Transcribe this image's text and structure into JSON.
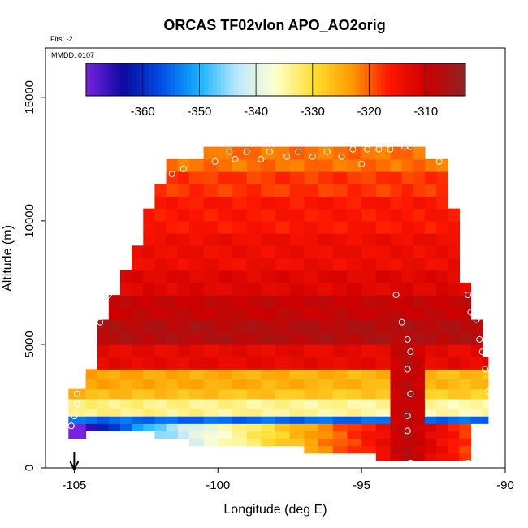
{
  "chart_data": {
    "type": "heatmap",
    "title": "ORCAS TF02vlon APO_AO2orig",
    "flight_label": "Flts: -2",
    "date_label": "MMDD: 0107",
    "xlabel": "Longitude (deg E)",
    "ylabel": "Altitude (m)",
    "xlim": [
      -106,
      -90
    ],
    "ylim": [
      0,
      17000
    ],
    "xticks": [
      -105,
      -100,
      -95,
      -90
    ],
    "yticks": [
      0,
      5000,
      10000,
      15000
    ],
    "colorbar": {
      "range": [
        -370,
        -303
      ],
      "ticks": [
        -360,
        -350,
        -340,
        -330,
        -320,
        -310
      ],
      "colors": [
        "#7a22e0",
        "#0a0aa0",
        "#0050e8",
        "#16b4ff",
        "#bfe8ff",
        "#ffffcc",
        "#ffe030",
        "#ff9a00",
        "#ff1500",
        "#cc0000",
        "#8c2424"
      ]
    },
    "arrow_longitude": -105,
    "curtain": {
      "lon_edges": [
        -105.2,
        -104.6,
        -104.2,
        -103.8,
        -103.4,
        -103,
        -102.6,
        -102.2,
        -101.8,
        -101.4,
        -101,
        -100.5,
        -100,
        -99.5,
        -99,
        -98.5,
        -98,
        -97.5,
        -97,
        -96.5,
        -96,
        -95.5,
        -95,
        -94.5,
        -94,
        -93.6,
        -93.2,
        -92.8,
        -92.4,
        -92,
        -91.6,
        -91.2,
        -90.8,
        -90.6
      ],
      "alt_edges": [
        0,
        300,
        600,
        900,
        1200,
        1500,
        1800,
        2100,
        2400,
        2800,
        3200,
        3600,
        4000,
        4500,
        5000,
        5500,
        6000,
        6500,
        7000,
        7500,
        8000,
        8500,
        9000,
        9500,
        10000,
        10500,
        11000,
        11500,
        12000,
        12500,
        13000,
        13300
      ],
      "top_altitude": [
        3300,
        4100,
        6200,
        7200,
        8100,
        9200,
        10600,
        11400,
        12300,
        12700,
        12700,
        12800,
        12800,
        12800,
        12800,
        12800,
        12800,
        12900,
        12900,
        12900,
        12900,
        12900,
        13000,
        13000,
        13000,
        13100,
        13000,
        12700,
        12300,
        10700,
        7500,
        6000,
        4600
      ],
      "bottom_altitude": [
        1200,
        1400,
        1500,
        1500,
        1500,
        1500,
        1400,
        1300,
        1300,
        1100,
        1000,
        900,
        900,
        900,
        900,
        900,
        900,
        800,
        700,
        600,
        600,
        600,
        500,
        400,
        300,
        200,
        200,
        200,
        200,
        200,
        200,
        1700,
        1900
      ],
      "profile_low_altitude": [
        -370,
        -366,
        -362,
        -358,
        -355,
        -352,
        -349,
        -346,
        -344,
        -342,
        -340,
        -338,
        -336,
        -334,
        -332,
        -330,
        -328,
        -326,
        -324,
        -322,
        -320,
        -318,
        -316,
        -314,
        -312,
        -311,
        -310,
        -312,
        -314,
        -316,
        -318,
        -320,
        -322
      ],
      "layer_ylo": [
        {
          "ylo": 1900,
          "value": -355
        },
        {
          "ylo": 2200,
          "value": -333
        },
        {
          "ylo": 2800,
          "value": -326
        },
        {
          "ylo": 3200,
          "value": -324
        },
        {
          "ylo": 4000,
          "value": -313
        },
        {
          "ylo": 5000,
          "value": -307
        },
        {
          "ylo": 6000,
          "value": -309
        },
        {
          "ylo": 7000,
          "value": -312
        },
        {
          "ylo": 8000,
          "value": -314
        },
        {
          "ylo": 9500,
          "value": -316
        },
        {
          "ylo": 11000,
          "value": -318
        },
        {
          "ylo": 12000,
          "value": -321
        }
      ],
      "core_longitude": -93.4,
      "core_value": -308
    },
    "samples": [
      {
        "lon": -105.1,
        "alt": 1700
      },
      {
        "lon": -105,
        "alt": 2100
      },
      {
        "lon": -104.9,
        "alt": 2600
      },
      {
        "lon": -104.9,
        "alt": 3000
      },
      {
        "lon": -104.7,
        "alt": 3900
      },
      {
        "lon": -104.8,
        "alt": 4100
      },
      {
        "lon": -104.5,
        "alt": 4700
      },
      {
        "lon": -104.4,
        "alt": 5200
      },
      {
        "lon": -104.1,
        "alt": 5900
      },
      {
        "lon": -103.8,
        "alt": 7000
      },
      {
        "lon": -102.5,
        "alt": 11800
      },
      {
        "lon": -102,
        "alt": 12600
      },
      {
        "lon": -101.6,
        "alt": 11900
      },
      {
        "lon": -101.4,
        "alt": 12700
      },
      {
        "lon": -101.2,
        "alt": 12100
      },
      {
        "lon": -100.6,
        "alt": 12700
      },
      {
        "lon": -100.1,
        "alt": 12400
      },
      {
        "lon": -99.6,
        "alt": 12800
      },
      {
        "lon": -99.4,
        "alt": 12500
      },
      {
        "lon": -99,
        "alt": 12800
      },
      {
        "lon": -98.5,
        "alt": 12500
      },
      {
        "lon": -98.2,
        "alt": 12800
      },
      {
        "lon": -97.6,
        "alt": 12600
      },
      {
        "lon": -97.2,
        "alt": 12800
      },
      {
        "lon": -96.7,
        "alt": 12600
      },
      {
        "lon": -96.2,
        "alt": 12800
      },
      {
        "lon": -95.7,
        "alt": 12600
      },
      {
        "lon": -95.3,
        "alt": 12900
      },
      {
        "lon": -94.8,
        "alt": 12900
      },
      {
        "lon": -94.4,
        "alt": 12900
      },
      {
        "lon": -94,
        "alt": 12900
      },
      {
        "lon": -93.5,
        "alt": 13000
      },
      {
        "lon": -95,
        "alt": 12300
      },
      {
        "lon": -93.3,
        "alt": 13000
      },
      {
        "lon": -92.3,
        "alt": 12400
      },
      {
        "lon": -93.8,
        "alt": 7000
      },
      {
        "lon": -93.6,
        "alt": 5900
      },
      {
        "lon": -93.4,
        "alt": 5200
      },
      {
        "lon": -93.3,
        "alt": 4700
      },
      {
        "lon": -93.4,
        "alt": 4000
      },
      {
        "lon": -93.3,
        "alt": 3000
      },
      {
        "lon": -93.4,
        "alt": 2100
      },
      {
        "lon": -93.4,
        "alt": 1500
      },
      {
        "lon": -93.3,
        "alt": 200
      },
      {
        "lon": -91.3,
        "alt": 7000
      },
      {
        "lon": -91.2,
        "alt": 6300
      },
      {
        "lon": -91,
        "alt": 6000
      },
      {
        "lon": -90.9,
        "alt": 5200
      },
      {
        "lon": -90.8,
        "alt": 4700
      },
      {
        "lon": -90.7,
        "alt": 4000
      },
      {
        "lon": -90.6,
        "alt": 3100
      },
      {
        "lon": -91.3,
        "alt": 200
      }
    ]
  }
}
